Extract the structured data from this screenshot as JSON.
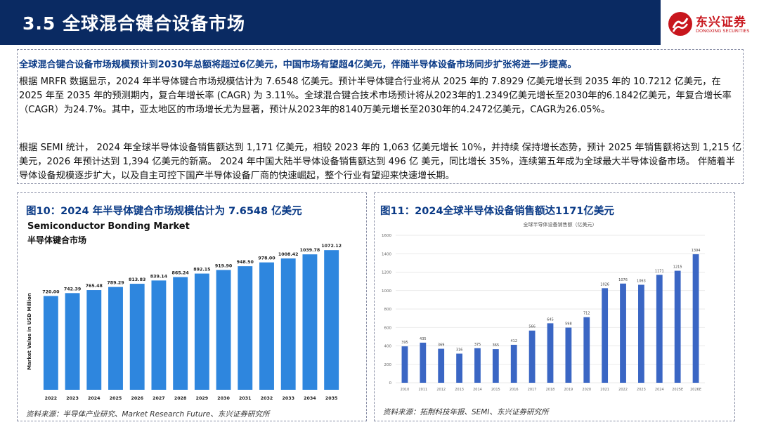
{
  "header": {
    "title": "3.5  全球混合键合设备市场",
    "logo_cn": "东兴证券",
    "logo_en": "DONGXING SECURITIES",
    "brand_color": "#0a2a62",
    "logo_color": "#c8161d"
  },
  "summary": {
    "headline": "全球混合键合设备市场规模预计到2030年总额将超过6亿美元，中国市场有望超4亿美元，伴随半导体设备市场同步扩张将进一步提高。",
    "paragraph1": "根据 MRFR 数据显示，2024 年半导体键合市场规模估计为 7.6548 亿美元。预计半导体键合行业将从 2025 年的 7.8929 亿美元增长到 2035 年的 10.7212 亿美元，在 2025 年至 2035 年的预测期内，复合年增长率 (CAGR) 为 3.11%。全球混合键合技术市场预计将从2023年的1.2349亿美元增长至2030年的6.1842亿美元，年复合增长率（CAGR）为24.7%。其中，亚太地区的市场增长尤为显著，预计从2023年的8140万美元增长至2030年的4.2472亿美元，CAGR为26.05%。",
    "paragraph2": "根据 SEMI 统计， 2024 年全球半导体设备销售额达到 1,171 亿美元，相较 2023 年的 1,063 亿美元增长 10%，并持续 保持增长态势，预计 2025 年销售额将达到 1,215 亿美元，2026 年预计达到 1,394 亿美元的新高。 2024 年中国大陆半导体设备销售额达到 496 亿 美元，同比增长 35%，连续第五年成为全球最大半导体设备市场。 伴随着半导体设备规模逐步扩大，以及自主可控下国产半导体设备厂商的快速崛起，整个行业有望迎来快速增长期。"
  },
  "figure10": {
    "caption": "图10：2024 年半导体键合市场规模估计为 7.6548 亿美元",
    "source": "资料来源：半导体产业研究、Market Research Future、东兴证券研究所"
  },
  "figure11": {
    "caption": "图11：2024全球半导体设备销售额达1171亿美元",
    "source": "资料来源：拓荆科技年报、SEMI、东兴证券研究所"
  },
  "chart_data": [
    {
      "type": "bar",
      "title": "Semiconductor Bonding Market",
      "subtitle": "半导体键合市场",
      "ylabel": "Market Value in USD Million",
      "xlabel": "",
      "categories": [
        "2022",
        "2023",
        "2024",
        "2025",
        "2026",
        "2027",
        "2028",
        "2029",
        "2030",
        "2031",
        "2032",
        "2033",
        "2034",
        "2035"
      ],
      "values": [
        720.0,
        742.39,
        765.48,
        789.29,
        813.83,
        839.14,
        865.24,
        892.15,
        919.9,
        948.5,
        978.0,
        1008.42,
        1039.78,
        1072.12
      ],
      "labels": [
        "720.00",
        "742.39",
        "765.48",
        "789.29",
        "813.83",
        "839.14",
        "865.24",
        "892.15",
        "919.90",
        "948.50",
        "978.00",
        "1008.42",
        "1039.78",
        "1072.12"
      ],
      "ylim": [
        0,
        1100
      ],
      "grid": false,
      "color": "#2e86de"
    },
    {
      "type": "bar",
      "title": "全球半导体设备销售额（亿美元）",
      "xlabel": "",
      "ylabel": "",
      "categories": [
        "2010",
        "2011",
        "2012",
        "2013",
        "2014",
        "2015",
        "2016",
        "2017",
        "2018",
        "2019",
        "2020",
        "2021",
        "2022",
        "2023",
        "2024",
        "2025E",
        "2026E"
      ],
      "values": [
        395,
        435,
        369,
        316,
        375,
        365,
        412,
        566,
        645,
        598,
        712,
        1026,
        1076,
        1063,
        1171,
        1215,
        1394
      ],
      "yticks": [
        0,
        200,
        400,
        600,
        800,
        1000,
        1200,
        1400,
        1600
      ],
      "ylim": [
        0,
        1600
      ],
      "grid": true,
      "color": "#3a66c4"
    }
  ]
}
